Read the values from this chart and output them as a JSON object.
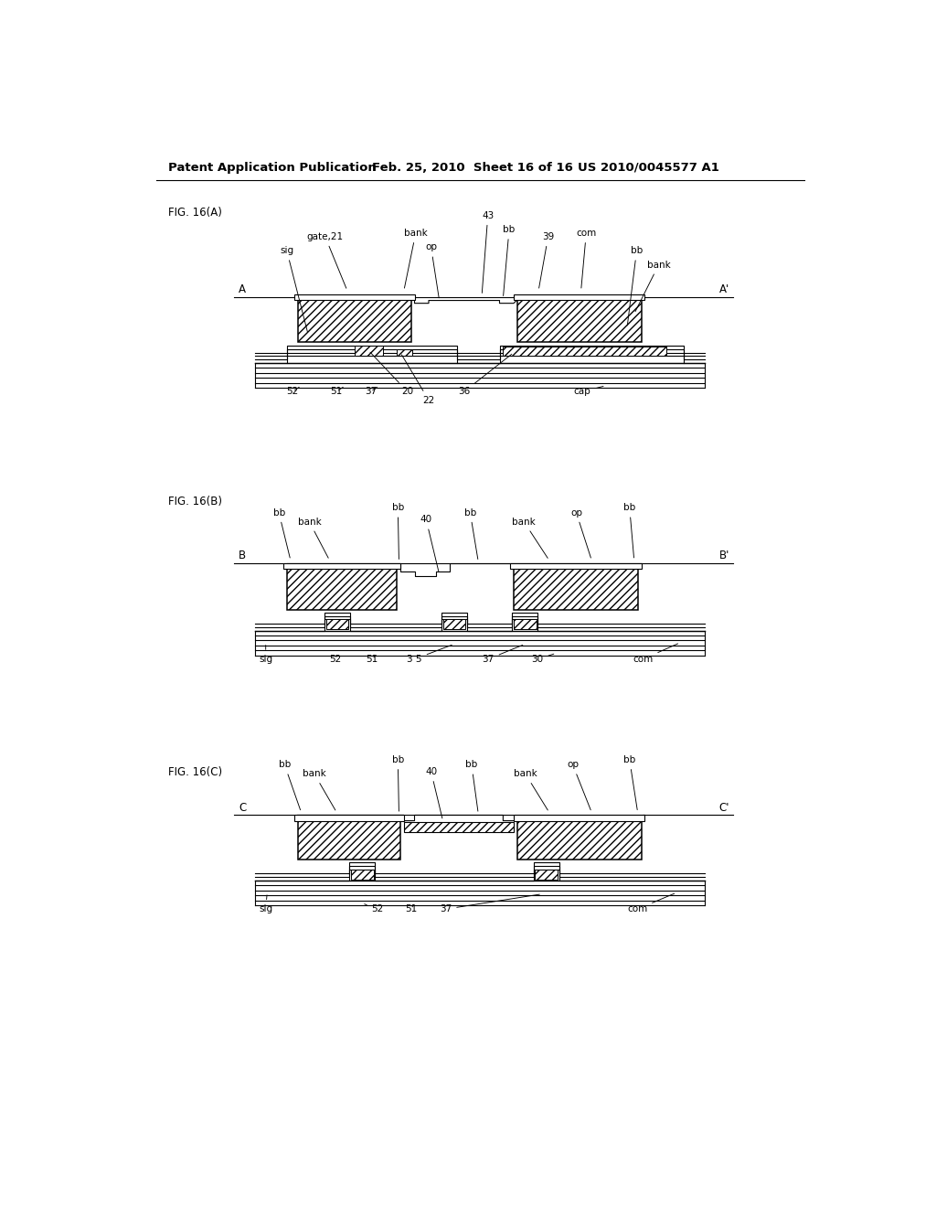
{
  "header_left": "Patent Application Publication",
  "header_mid": "Feb. 25, 2010  Sheet 16 of 16",
  "header_right": "US 2010/0045577 A1",
  "bg_color": "#ffffff",
  "line_color": "#000000",
  "font_size_header": 9.5,
  "font_size_fig": 8.5,
  "font_size_label": 7.5
}
